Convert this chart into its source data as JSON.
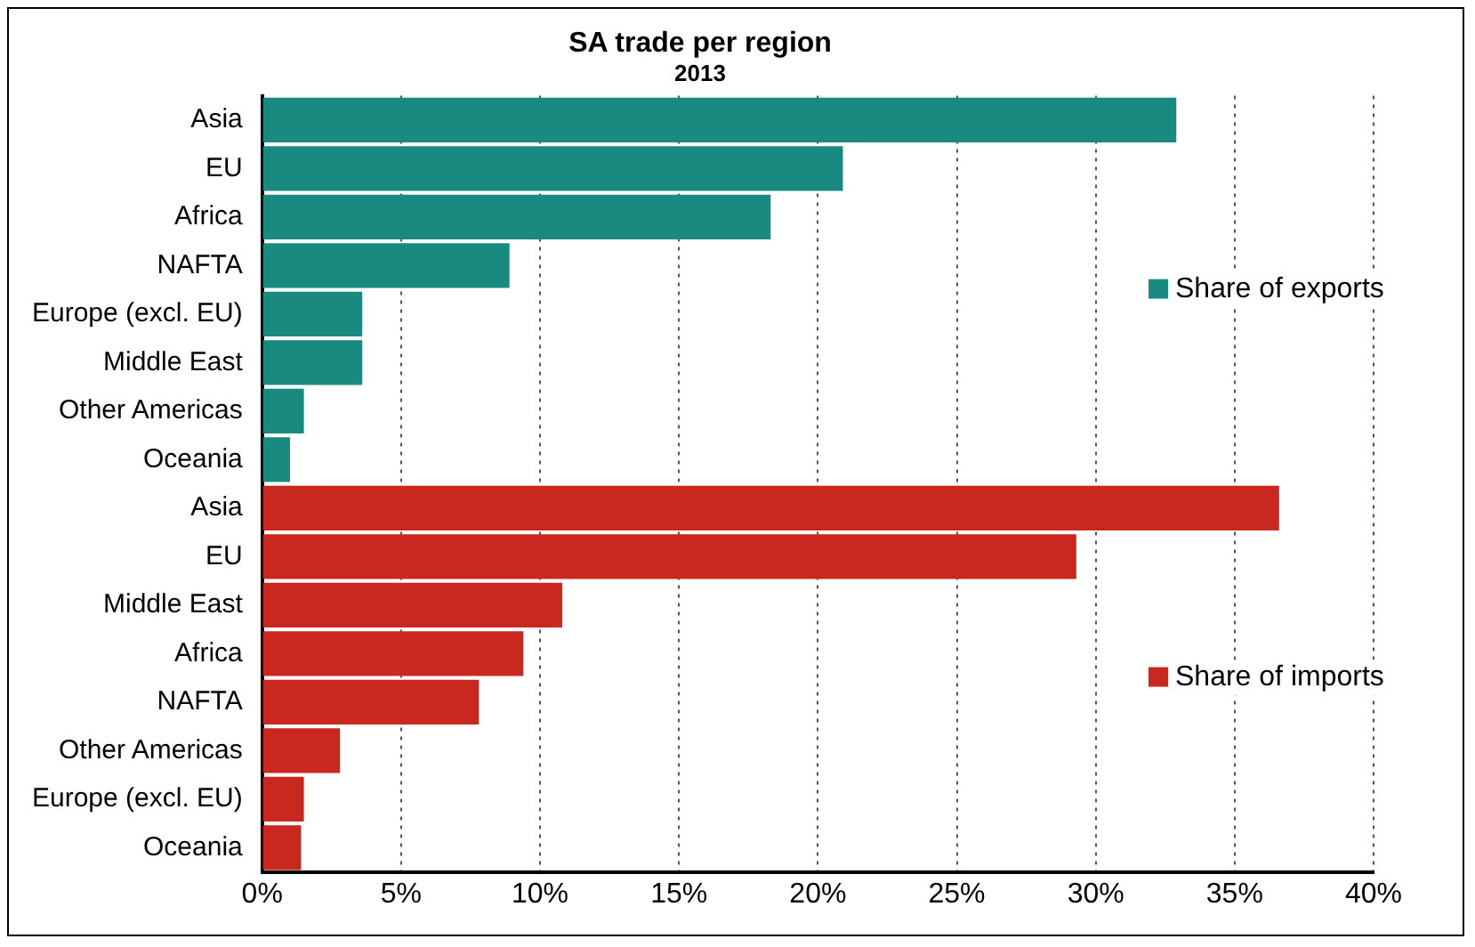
{
  "chart_data": {
    "type": "bar",
    "orientation": "horizontal",
    "stacked": true,
    "title": "SA trade per region",
    "subtitle": "2013",
    "categories": [
      "Asia",
      "EU",
      "Africa",
      "NAFTA",
      "Europe (excl. EU)",
      "Middle East",
      "Other Americas",
      "Oceania",
      "Asia",
      "EU",
      "Middle East",
      "Africa",
      "NAFTA",
      "Other Americas",
      "Europe (excl. EU)",
      "Oceania"
    ],
    "series": [
      {
        "name": "Share of exports",
        "color": "#1a8a80",
        "values": [
          32.9,
          20.9,
          18.3,
          8.9,
          3.6,
          3.6,
          1.5,
          1.0,
          null,
          null,
          null,
          null,
          null,
          null,
          null,
          null
        ]
      },
      {
        "name": "Share of imports",
        "color": "#c8281e",
        "values": [
          null,
          null,
          null,
          null,
          null,
          null,
          null,
          null,
          36.6,
          29.3,
          10.8,
          9.4,
          7.8,
          2.8,
          1.5,
          1.4
        ]
      }
    ],
    "xlim": [
      0,
      40
    ],
    "xticks": [
      {
        "value": 0,
        "label": "0%"
      },
      {
        "value": 5,
        "label": "5%"
      },
      {
        "value": 10,
        "label": "10%"
      },
      {
        "value": 15,
        "label": "15%"
      },
      {
        "value": 20,
        "label": "20%"
      },
      {
        "value": 25,
        "label": "25%"
      },
      {
        "value": 30,
        "label": "30%"
      },
      {
        "value": 35,
        "label": "35%"
      },
      {
        "value": 40,
        "label": "40%"
      }
    ],
    "grid": "x",
    "legend": "right"
  }
}
